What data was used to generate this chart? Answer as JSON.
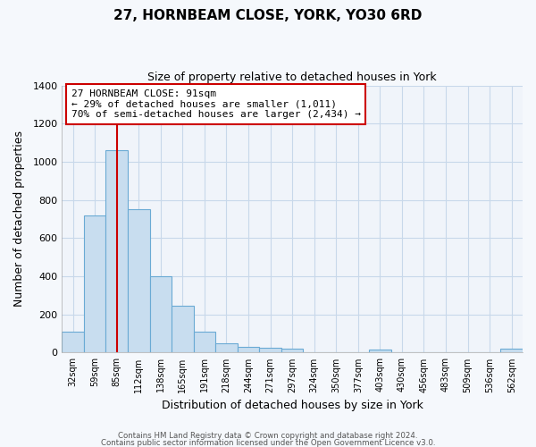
{
  "title": "27, HORNBEAM CLOSE, YORK, YO30 6RD",
  "subtitle": "Size of property relative to detached houses in York",
  "xlabel": "Distribution of detached houses by size in York",
  "ylabel": "Number of detached properties",
  "bar_color": "#c8ddef",
  "bar_edge_color": "#6aaad4",
  "categories": [
    "32sqm",
    "59sqm",
    "85sqm",
    "112sqm",
    "138sqm",
    "165sqm",
    "191sqm",
    "218sqm",
    "244sqm",
    "271sqm",
    "297sqm",
    "324sqm",
    "350sqm",
    "377sqm",
    "403sqm",
    "430sqm",
    "456sqm",
    "483sqm",
    "509sqm",
    "536sqm",
    "562sqm"
  ],
  "values": [
    110,
    720,
    1060,
    750,
    400,
    245,
    110,
    50,
    28,
    25,
    20,
    0,
    0,
    0,
    15,
    0,
    0,
    0,
    0,
    0,
    20
  ],
  "ylim": [
    0,
    1400
  ],
  "yticks": [
    0,
    200,
    400,
    600,
    800,
    1000,
    1200,
    1400
  ],
  "vline_x_index": 2,
  "vline_color": "#cc0000",
  "annotation_title": "27 HORNBEAM CLOSE: 91sqm",
  "annotation_line1": "← 29% of detached houses are smaller (1,011)",
  "annotation_line2": "70% of semi-detached houses are larger (2,434) →",
  "footer1": "Contains HM Land Registry data © Crown copyright and database right 2024.",
  "footer2": "Contains public sector information licensed under the Open Government Licence v3.0.",
  "figure_bg_color": "#f5f8fc",
  "plot_bg_color": "#f0f4fa",
  "grid_color": "#c8d8ea"
}
